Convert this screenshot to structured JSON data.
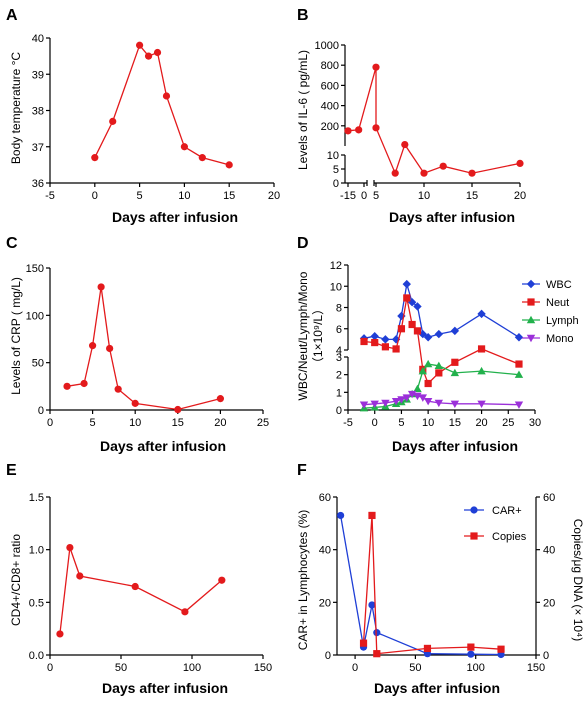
{
  "chart_data": [
    {
      "panel": "A",
      "type": "line",
      "xlabel": "Days after infusion",
      "ylabel": "Body temperature °C",
      "xlim": [
        -5,
        20
      ],
      "ylim": [
        36,
        40
      ],
      "xticks": [
        -5,
        0,
        5,
        10,
        15,
        20
      ],
      "yticks": [
        36,
        37,
        38,
        39,
        40
      ],
      "color": "#e31a1c",
      "series": [
        {
          "x": [
            0,
            2,
            5,
            6,
            7,
            8,
            10,
            12,
            15
          ],
          "y": [
            36.7,
            37.7,
            39.8,
            39.5,
            39.6,
            38.4,
            37.0,
            36.7,
            36.5
          ]
        }
      ]
    },
    {
      "panel": "B",
      "type": "line",
      "xlabel": "Days after infusion",
      "ylabel": "Levels of IL-6 ( pg/mL)",
      "xlim": [
        -15,
        20
      ],
      "y_broken": true,
      "ylim_lower": [
        0,
        10
      ],
      "ylim_upper": [
        0,
        1000
      ],
      "xticks": [
        "-15",
        "0",
        "5",
        "10",
        "15",
        "20"
      ],
      "yticks_lower": [
        0,
        5,
        10
      ],
      "yticks_upper": [
        200,
        400,
        600,
        800,
        1000
      ],
      "color": "#e31a1c",
      "series": [
        {
          "x": [
            -15,
            -5,
            3,
            5,
            7,
            8,
            10,
            12,
            15,
            20
          ],
          "y": [
            150,
            160,
            780,
            180,
            3.5,
            14,
            3.5,
            6,
            3.5,
            7
          ]
        }
      ]
    },
    {
      "panel": "C",
      "type": "line",
      "xlabel": "Days after infusion",
      "ylabel": "Levels of CRP ( mg/L)",
      "xlim": [
        0,
        25
      ],
      "ylim": [
        0,
        150
      ],
      "xticks": [
        0,
        5,
        10,
        15,
        20,
        25
      ],
      "yticks": [
        0,
        50,
        100,
        150
      ],
      "color": "#e31a1c",
      "series": [
        {
          "x": [
            2,
            4,
            5,
            6,
            7,
            8,
            10,
            15,
            20
          ],
          "y": [
            25,
            28,
            68,
            130,
            65,
            22,
            7,
            0.5,
            12
          ]
        }
      ]
    },
    {
      "panel": "D",
      "type": "line",
      "xlabel": "Days after infusion",
      "ylabel": "WBC/Neut/Lymph/Mono",
      "ylabel_unit": "（1×10⁹/L）",
      "xlim": [
        -5,
        30
      ],
      "y_broken": true,
      "ylim_lower": [
        0,
        3
      ],
      "ylim_upper": [
        4,
        12
      ],
      "xticks": [
        -5,
        0,
        5,
        10,
        15,
        20,
        25,
        30
      ],
      "yticks_lower": [
        0,
        1,
        2,
        3
      ],
      "yticks_upper": [
        4,
        6,
        8,
        10,
        12
      ],
      "legend": "right",
      "series": [
        {
          "name": "WBC",
          "color": "#1f3fd6",
          "marker": "diamond",
          "x": [
            -2,
            0,
            2,
            4,
            5,
            6,
            7,
            8,
            9,
            10,
            12,
            15,
            20,
            27
          ],
          "y": [
            5.1,
            5.3,
            5.0,
            5.0,
            7.2,
            10.2,
            8.5,
            8.1,
            5.5,
            5.2,
            5.5,
            5.8,
            7.4,
            5.2
          ]
        },
        {
          "name": "Neut",
          "color": "#e31a1c",
          "marker": "square",
          "x": [
            -2,
            0,
            2,
            4,
            5,
            6,
            7,
            8,
            9,
            10,
            12,
            15,
            20,
            27
          ],
          "y": [
            4.8,
            4.7,
            4.3,
            4.1,
            6.0,
            8.9,
            6.4,
            5.8,
            2.3,
            1.5,
            2.1,
            2.7,
            4.1,
            2.6
          ]
        },
        {
          "name": "Lymph",
          "color": "#22b14c",
          "marker": "triangle",
          "x": [
            -2,
            0,
            2,
            4,
            5,
            6,
            7,
            8,
            9,
            10,
            12,
            15,
            20,
            27
          ],
          "y": [
            0.1,
            0.15,
            0.2,
            0.35,
            0.45,
            0.6,
            0.9,
            1.2,
            2.2,
            2.6,
            2.5,
            2.1,
            2.2,
            2.0
          ]
        },
        {
          "name": "Mono",
          "color": "#9b30d9",
          "marker": "triangle-down",
          "x": [
            -2,
            0,
            2,
            4,
            5,
            6,
            7,
            8,
            9,
            10,
            12,
            15,
            20,
            27
          ],
          "y": [
            0.3,
            0.35,
            0.4,
            0.5,
            0.6,
            0.7,
            0.9,
            0.8,
            0.7,
            0.5,
            0.4,
            0.35,
            0.35,
            0.3
          ]
        }
      ]
    },
    {
      "panel": "E",
      "type": "line",
      "xlabel": "Days after infusion",
      "ylabel": "CD4+/CD8+ ratio",
      "xlim": [
        0,
        150
      ],
      "ylim": [
        0,
        1.5
      ],
      "xticks": [
        0,
        50,
        100,
        150
      ],
      "yticks": [
        "0.0",
        "0.5",
        "1.0",
        "1.5"
      ],
      "color": "#e31a1c",
      "series": [
        {
          "x": [
            7,
            14,
            21,
            60,
            95,
            121
          ],
          "y": [
            0.2,
            1.02,
            0.75,
            0.65,
            0.41,
            0.71
          ]
        }
      ]
    },
    {
      "panel": "F",
      "type": "line",
      "xlabel": "Days after infusion",
      "ylabel": "CAR+ in Lymphocytes (%)",
      "ylabel_right": "Copies/μg DNA (× 10⁴)",
      "xlim": [
        -15,
        150
      ],
      "ylim": [
        0,
        60
      ],
      "ylim_right": [
        0,
        60
      ],
      "xticks": [
        0,
        50,
        100,
        150
      ],
      "yticks": [
        0,
        20,
        40,
        60
      ],
      "yticks_right": [
        0,
        20,
        40,
        60
      ],
      "legend": "top-right",
      "series": [
        {
          "name": "CAR+",
          "color": "#1f3fd6",
          "marker": "circle",
          "axis": "left",
          "x": [
            -12,
            7,
            14,
            18,
            60,
            96,
            121
          ],
          "y": [
            53,
            3,
            19,
            8.5,
            0.5,
            0.3,
            0.2
          ]
        },
        {
          "name": "Copies",
          "color": "#e31a1c",
          "marker": "square",
          "axis": "right",
          "x": [
            7,
            14,
            18,
            60,
            96,
            121
          ],
          "y": [
            4.5,
            53,
            0.5,
            2.5,
            3,
            2.2
          ]
        }
      ]
    }
  ]
}
